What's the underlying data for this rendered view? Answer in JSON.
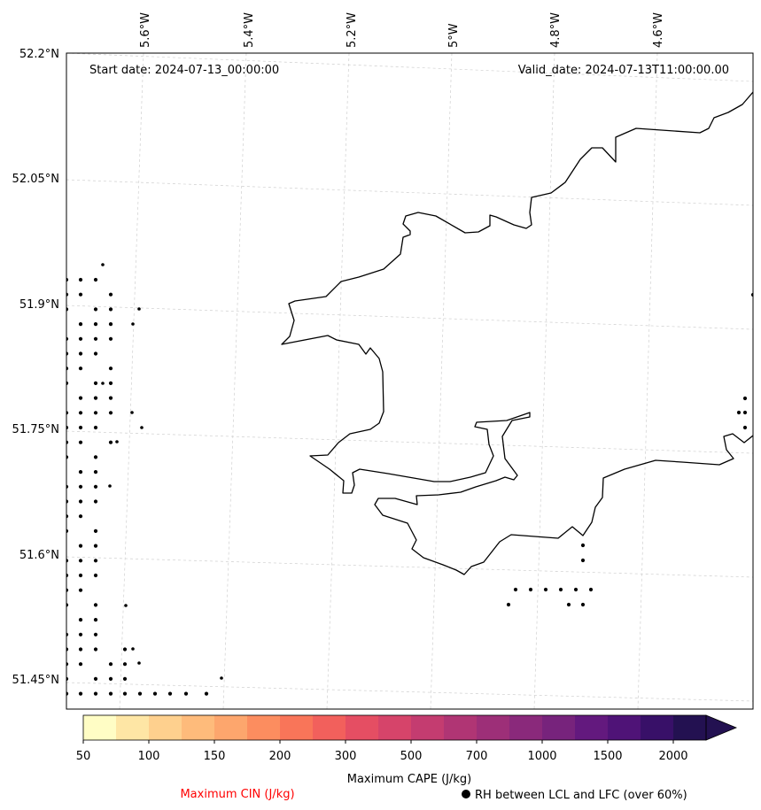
{
  "map": {
    "start_date": "Start date: 2024-07-13_00:00:00",
    "valid_date": "Valid_date: 2024-07-13T11:00:00.00",
    "lon_ticks": [
      "5.6°W",
      "5.4°W",
      "5.2°W",
      "5°W",
      "4.8°W",
      "4.6°W"
    ],
    "lat_ticks": [
      "52.2°N",
      "52.05°N",
      "51.9°N",
      "51.75°N",
      "51.6°N",
      "51.45°N"
    ]
  },
  "colorbar": {
    "label": "Maximum CAPE (J/kg)",
    "tick_labels": [
      "50",
      "100",
      "150",
      "200",
      "300",
      "500",
      "700",
      "1000",
      "1500",
      "2000"
    ],
    "colors": [
      "#fffdc5",
      "#fee6a5",
      "#fed08e",
      "#febb7b",
      "#fda66d",
      "#fc8d5f",
      "#f97559",
      "#f2605c",
      "#e54e63",
      "#d6446a",
      "#c43c70",
      "#b03574",
      "#9d2f78",
      "#8a297b",
      "#77237c",
      "#63197e",
      "#4f1377",
      "#381068",
      "#231151"
    ]
  },
  "legend": {
    "cin_label": "Maximum CIN (J/kg)",
    "cin_color": "#ff0000",
    "rh_label": "RH between LCL and LFC (over 60%)",
    "rh_marker": "filled-circle-marker"
  }
}
